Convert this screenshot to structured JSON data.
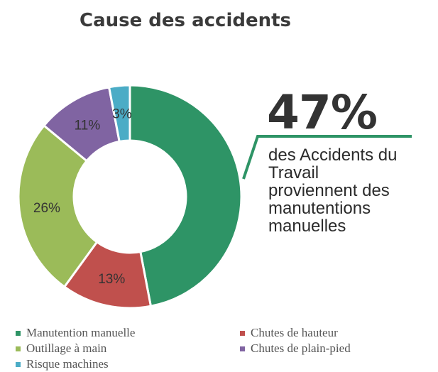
{
  "chart_data": {
    "type": "donut",
    "title": "Cause des accidents",
    "categories": [
      "Manutention manuelle",
      "Chutes de hauteur",
      "Outillage à main",
      "Chutes de plain-pied",
      "Risque machines"
    ],
    "values": [
      47,
      13,
      26,
      11,
      3
    ],
    "labels": [
      "",
      "13%",
      "26%",
      "11%",
      "3%"
    ],
    "colors": [
      "#2e9466",
      "#c0504d",
      "#9bbb59",
      "#8064a2",
      "#4bacc6"
    ],
    "legend_position": "bottom"
  },
  "callout": {
    "value": "47%",
    "lines": [
      "des Accidents du",
      "Travail",
      "proviennent des",
      "manutentions",
      "manuelles"
    ],
    "accent": "#2e9466"
  }
}
